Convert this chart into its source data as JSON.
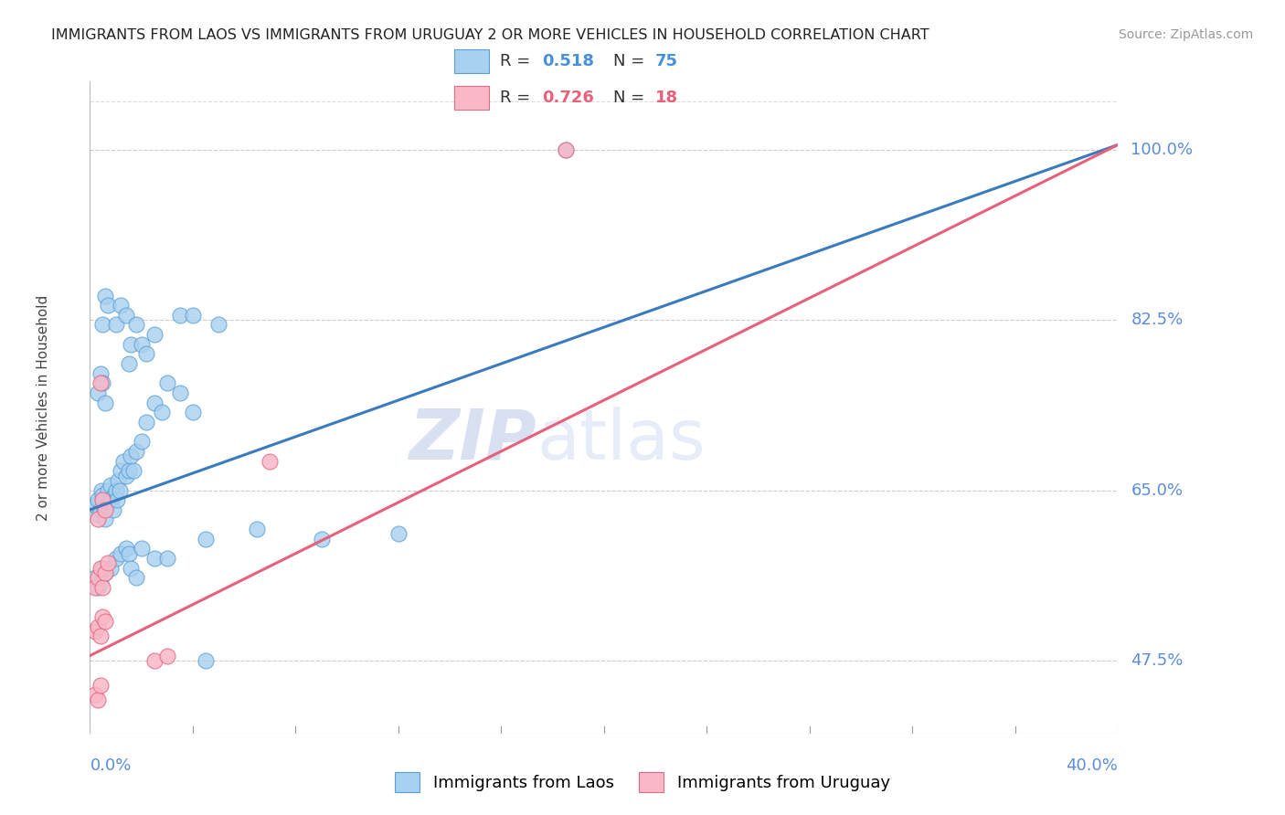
{
  "title": "IMMIGRANTS FROM LAOS VS IMMIGRANTS FROM URUGUAY 2 OR MORE VEHICLES IN HOUSEHOLD CORRELATION CHART",
  "source": "Source: ZipAtlas.com",
  "ylabel": "2 or more Vehicles in Household",
  "yticks": [
    47.5,
    65.0,
    82.5,
    100.0
  ],
  "ytick_labels": [
    "47.5%",
    "65.0%",
    "82.5%",
    "100.0%"
  ],
  "xmin": 0.0,
  "xmax": 40.0,
  "ymin": 40.0,
  "ymax": 107.0,
  "laos_color": "#a8d0f0",
  "laos_edge_color": "#5a9fd4",
  "uruguay_color": "#f9b8c8",
  "uruguay_edge_color": "#e86880",
  "laos_line_color": "#3a7abf",
  "uruguay_line_color": "#e8607a",
  "watermark_color": "#d0dff5",
  "laos_line": [
    [
      0.0,
      63.0
    ],
    [
      40.0,
      100.5
    ]
  ],
  "uruguay_line": [
    [
      0.0,
      48.0
    ],
    [
      40.0,
      100.5
    ]
  ],
  "laos_scatter": [
    [
      0.2,
      63.5
    ],
    [
      0.3,
      64.0
    ],
    [
      0.35,
      62.5
    ],
    [
      0.4,
      63.0
    ],
    [
      0.45,
      65.0
    ],
    [
      0.5,
      64.5
    ],
    [
      0.55,
      63.0
    ],
    [
      0.6,
      62.0
    ],
    [
      0.65,
      63.5
    ],
    [
      0.7,
      65.0
    ],
    [
      0.75,
      64.0
    ],
    [
      0.8,
      65.5
    ],
    [
      0.85,
      64.0
    ],
    [
      0.9,
      63.0
    ],
    [
      0.95,
      64.5
    ],
    [
      1.0,
      65.0
    ],
    [
      1.05,
      64.0
    ],
    [
      1.1,
      66.0
    ],
    [
      1.15,
      65.0
    ],
    [
      1.2,
      67.0
    ],
    [
      1.3,
      68.0
    ],
    [
      1.4,
      66.5
    ],
    [
      1.5,
      67.0
    ],
    [
      1.6,
      68.5
    ],
    [
      1.7,
      67.0
    ],
    [
      1.8,
      69.0
    ],
    [
      2.0,
      70.0
    ],
    [
      2.2,
      72.0
    ],
    [
      2.5,
      74.0
    ],
    [
      2.8,
      73.0
    ],
    [
      3.0,
      76.0
    ],
    [
      3.5,
      75.0
    ],
    [
      4.0,
      73.0
    ],
    [
      4.5,
      60.0
    ],
    [
      0.3,
      75.0
    ],
    [
      0.4,
      77.0
    ],
    [
      0.5,
      76.0
    ],
    [
      0.6,
      74.0
    ],
    [
      0.5,
      82.0
    ],
    [
      0.6,
      85.0
    ],
    [
      0.7,
      84.0
    ],
    [
      1.0,
      82.0
    ],
    [
      1.2,
      84.0
    ],
    [
      1.4,
      83.0
    ],
    [
      1.5,
      78.0
    ],
    [
      1.6,
      80.0
    ],
    [
      1.8,
      82.0
    ],
    [
      2.0,
      80.0
    ],
    [
      2.2,
      79.0
    ],
    [
      2.5,
      81.0
    ],
    [
      3.5,
      83.0
    ],
    [
      4.0,
      83.0
    ],
    [
      5.0,
      82.0
    ],
    [
      0.2,
      56.0
    ],
    [
      0.3,
      55.0
    ],
    [
      0.4,
      55.5
    ],
    [
      0.5,
      57.0
    ],
    [
      0.6,
      56.5
    ],
    [
      0.8,
      57.0
    ],
    [
      1.0,
      58.0
    ],
    [
      1.2,
      58.5
    ],
    [
      1.4,
      59.0
    ],
    [
      1.5,
      58.5
    ],
    [
      1.6,
      57.0
    ],
    [
      1.8,
      56.0
    ],
    [
      2.0,
      59.0
    ],
    [
      2.5,
      58.0
    ],
    [
      3.0,
      58.0
    ],
    [
      6.5,
      61.0
    ],
    [
      12.0,
      60.5
    ],
    [
      18.5,
      100.0
    ],
    [
      4.5,
      47.5
    ],
    [
      9.0,
      60.0
    ]
  ],
  "uruguay_scatter": [
    [
      0.2,
      55.0
    ],
    [
      0.3,
      56.0
    ],
    [
      0.4,
      57.0
    ],
    [
      0.5,
      55.0
    ],
    [
      0.6,
      56.5
    ],
    [
      0.7,
      57.5
    ],
    [
      0.3,
      62.0
    ],
    [
      0.5,
      64.0
    ],
    [
      0.6,
      63.0
    ],
    [
      0.2,
      50.5
    ],
    [
      0.3,
      51.0
    ],
    [
      0.4,
      50.0
    ],
    [
      0.5,
      52.0
    ],
    [
      0.6,
      51.5
    ],
    [
      0.2,
      44.0
    ],
    [
      0.3,
      43.5
    ],
    [
      0.4,
      45.0
    ],
    [
      7.0,
      68.0
    ],
    [
      18.5,
      100.0
    ],
    [
      2.5,
      47.5
    ],
    [
      3.0,
      48.0
    ],
    [
      0.4,
      76.0
    ]
  ]
}
